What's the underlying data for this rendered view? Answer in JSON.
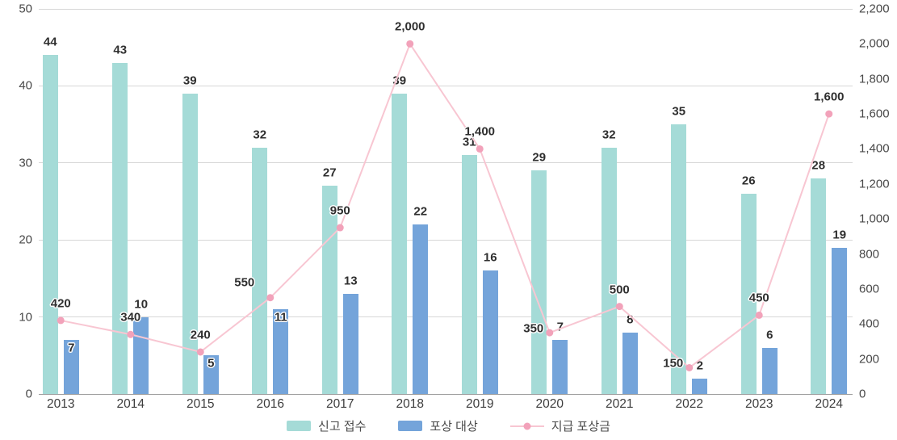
{
  "chart_data": {
    "type": "bar",
    "title": "",
    "categories": [
      "2013",
      "2014",
      "2015",
      "2016",
      "2017",
      "2018",
      "2019",
      "2020",
      "2021",
      "2022",
      "2023",
      "2024"
    ],
    "series": [
      {
        "name": "신고 접수",
        "type": "bar",
        "axis": "left",
        "color": "#a5dbd7",
        "values": [
          44,
          43,
          39,
          32,
          27,
          39,
          31,
          29,
          32,
          35,
          26,
          28
        ]
      },
      {
        "name": "포상 대상",
        "type": "bar",
        "axis": "left",
        "color": "#74a4da",
        "values": [
          7,
          10,
          5,
          11,
          13,
          22,
          16,
          7,
          8,
          2,
          6,
          19
        ]
      },
      {
        "name": "지급 포상금",
        "type": "line",
        "axis": "right",
        "color": "#f8c6d2",
        "marker_color": "#f2a2ba",
        "values": [
          420,
          340,
          240,
          550,
          950,
          2000,
          1400,
          350,
          500,
          150,
          450,
          1600
        ]
      }
    ],
    "left_axis": {
      "min": 0,
      "max": 50,
      "ticks": [
        "0",
        "10",
        "20",
        "30",
        "40",
        "50"
      ]
    },
    "right_axis": {
      "min": 0,
      "max": 2200,
      "ticks": [
        "0",
        "200",
        "400",
        "600",
        "800",
        "1,000",
        "1,200",
        "1,400",
        "1,600",
        "1,800",
        "2,000",
        "2,200"
      ]
    },
    "grid": true,
    "legend_position": "bottom",
    "label_layout": {
      "bar2_inside_indices": [
        0,
        2,
        3
      ],
      "line_label_offsets": {
        "3": [
          -32,
          2
        ],
        "7": [
          -20,
          16
        ],
        "9": [
          -20,
          16
        ]
      }
    }
  }
}
